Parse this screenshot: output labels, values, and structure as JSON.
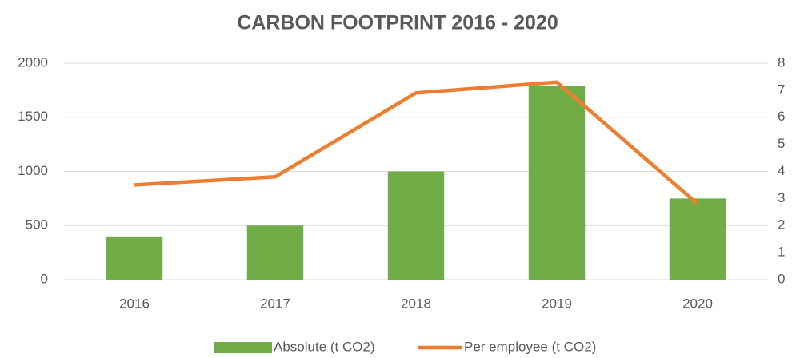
{
  "chart_data": {
    "type": "combo",
    "title": "CARBON FOOTPRINT 2016 - 2020",
    "categories": [
      "2016",
      "2017",
      "2018",
      "2019",
      "2020"
    ],
    "series": [
      {
        "name": "Absolute (t CO2)",
        "type": "bar",
        "color": "#70ad47",
        "values": [
          400,
          500,
          1000,
          1790,
          750
        ]
      },
      {
        "name": "Per employee (t CO2)",
        "type": "line",
        "axis": "y2",
        "color": "#ed7d31",
        "values": [
          3.5,
          3.8,
          6.9,
          7.3,
          2.8
        ]
      }
    ],
    "ylim": [
      0,
      2000
    ],
    "yticks": [
      0,
      500,
      1000,
      1500,
      2000
    ],
    "y2lim": [
      0,
      8
    ],
    "y2ticks": [
      0,
      1,
      2,
      3,
      4,
      5,
      6,
      7,
      8
    ],
    "grid": true,
    "legend": "bottom"
  }
}
